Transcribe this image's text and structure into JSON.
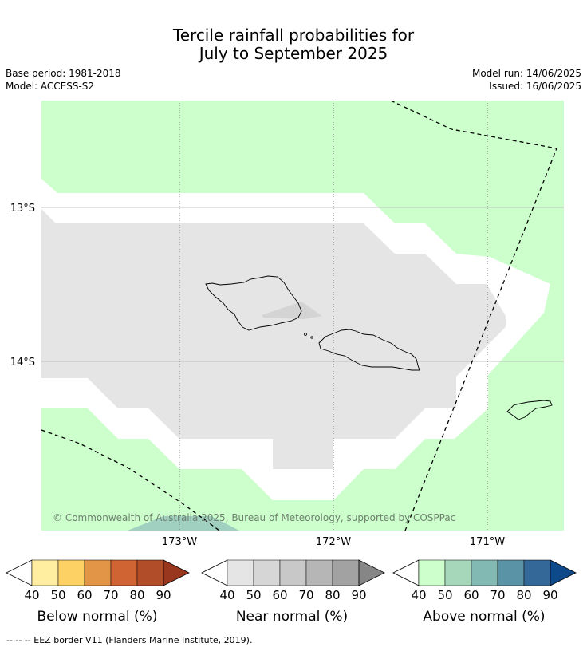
{
  "title": {
    "line1": "Tercile rainfall probabilities for",
    "line2": "July to September 2025"
  },
  "meta": {
    "base_period": "Base period: 1981-2018",
    "model": "Model: ACCESS-S2",
    "model_run": "Model run: 14/06/2025",
    "issued": "Issued: 16/06/2025"
  },
  "map": {
    "lat_labels": [
      "13°S",
      "14°S"
    ],
    "lon_labels": [
      "173°W",
      "172°W",
      "171°W"
    ],
    "copyright": "© Commonwealth of Australia 2025, Bureau of Meteorology, supported by COSPPac",
    "colors": {
      "above_normal_fill": "#ccffcc",
      "near_normal_fill": "#e5e5e5",
      "above_70_fill": "#9fd0c0",
      "island_shade": "#d4d4d4"
    }
  },
  "legends": [
    {
      "label": "Below normal (%)",
      "ticks": [
        "40",
        "50",
        "60",
        "70",
        "80",
        "90"
      ],
      "colors": [
        "#ffffff",
        "#ffeda0",
        "#fed165",
        "#e29547",
        "#d06432",
        "#b24d2a",
        "#99371e"
      ]
    },
    {
      "label": "Near normal (%)",
      "ticks": [
        "40",
        "50",
        "60",
        "70",
        "80",
        "90"
      ],
      "colors": [
        "#ffffff",
        "#e5e5e5",
        "#d6d6d6",
        "#c8c8c8",
        "#b6b6b6",
        "#a2a2a2",
        "#868686"
      ]
    },
    {
      "label": "Above normal (%)",
      "ticks": [
        "40",
        "50",
        "60",
        "70",
        "80",
        "90"
      ],
      "colors": [
        "#ffffff",
        "#ccffcc",
        "#a6d7bb",
        "#82b9b2",
        "#5b93a6",
        "#346899",
        "#0e4a8b"
      ]
    }
  ],
  "footnote": "--  --  -- EEZ border V11 (Flanders Marine Institute, 2019)."
}
